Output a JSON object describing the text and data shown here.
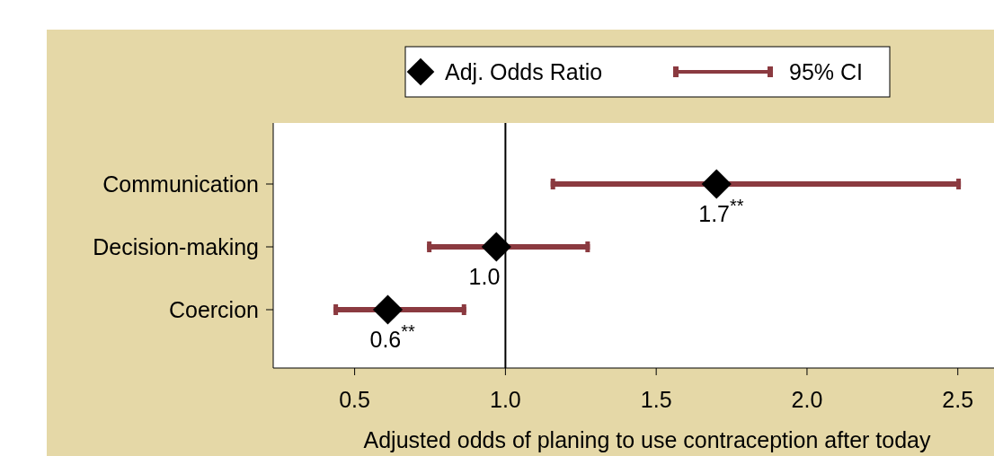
{
  "chart_data": {
    "type": "scatter",
    "orientation": "horizontal",
    "xlabel": "Adjusted odds of planing to use contraception after today",
    "categories": [
      "Communication",
      "Decision-making",
      "Coercion"
    ],
    "series": [
      {
        "name": "Adj. Odds Ratio",
        "color": "#000000",
        "values": [
          1.7,
          0.97,
          0.61
        ],
        "value_labels": [
          "1.7$^{**}$",
          "1.0",
          "0.6$^{**}$"
        ]
      },
      {
        "name": "95% CI",
        "type": "bar",
        "color": "#8b3a40",
        "base": [
          1.15,
          0.74,
          0.43
        ],
        "values": [
          1.36,
          0.54,
          0.44
        ]
      }
    ],
    "xlim": [
      0.23,
      2.62
    ],
    "xticks": [
      {
        "value": 0.5,
        "label": "0.5"
      },
      {
        "value": 1,
        "label": "1.0"
      },
      {
        "value": 1.5,
        "label": "1.5"
      },
      {
        "value": 2,
        "label": "2.0"
      },
      {
        "value": 2.5,
        "label": "2.5"
      }
    ],
    "ref_lines": [
      {
        "axis": "x",
        "value": 1,
        "color": "#000000"
      }
    ],
    "marker": "diamond",
    "legend": "top",
    "grid": false
  }
}
